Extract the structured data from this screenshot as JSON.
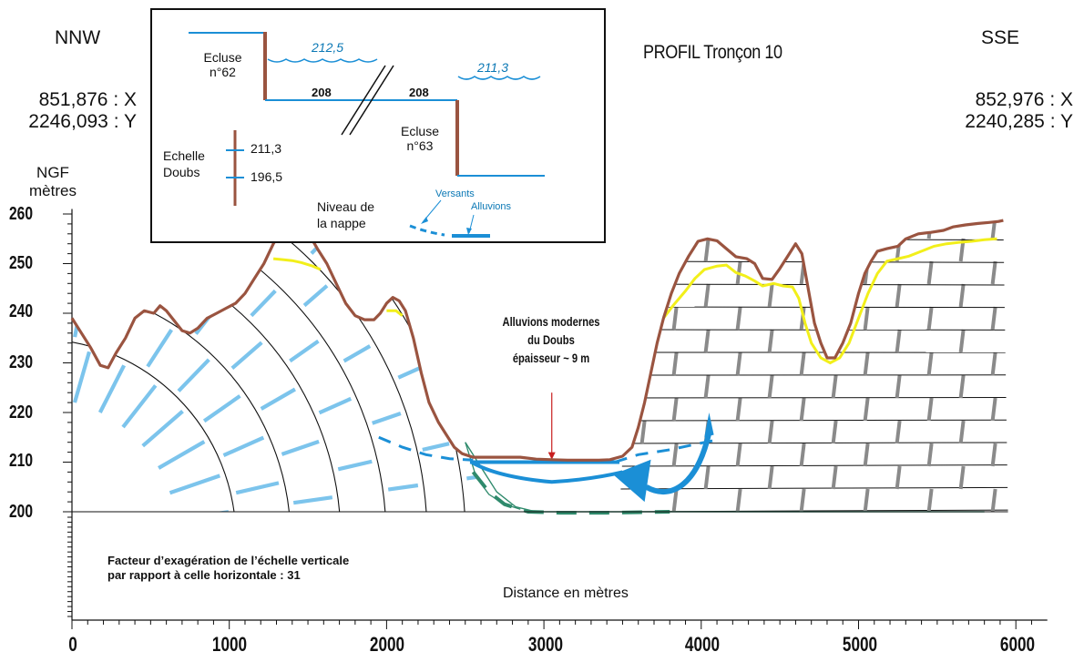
{
  "header": {
    "left_dir": "NNW",
    "right_dir": "SSE",
    "title": "PROFIL Tronçon 10",
    "left_x": "851,876 : X",
    "left_y": "2246,093 : Y",
    "right_x": "852,976 : X",
    "right_y": "2240,285 : Y"
  },
  "axis": {
    "unit_line1": "NGF",
    "unit_line2": "mètres",
    "y_ticks": [
      "260",
      "250",
      "240",
      "230",
      "220",
      "210",
      "200"
    ],
    "x_ticks": [
      "0",
      "1000",
      "2000",
      "3000",
      "4000",
      "5000",
      "6000"
    ],
    "x_label": "Distance en mètres"
  },
  "note": {
    "line1": "Facteur d’exagération de l’échelle verticale",
    "line2": "par rapport à celle horizontale : 31"
  },
  "annotation": {
    "line1": "Alluvions modernes",
    "line2": "du Doubs",
    "line3": "épaisseur ~ 9 m"
  },
  "inset": {
    "ecluse62_1": "Ecluse",
    "ecluse62_2": "n°62",
    "level_upstream": "212,5",
    "level_downstream": "211,3",
    "bottom_left": "208",
    "bottom_right": "208",
    "ecluse63_1": "Ecluse",
    "ecluse63_2": "n°63",
    "echelle_1": "Echelle",
    "echelle_2": "Doubs",
    "scale_high": "211,3",
    "scale_low": "196,5",
    "nappe_1": "Niveau de",
    "nappe_2": "la nappe",
    "versants": "Versants",
    "alluvions": "Alluvions"
  },
  "colors": {
    "terrain": "#9a5440",
    "yellow": "#f2ef1a",
    "blue": "#1b8fd6",
    "light_blue": "#7cc4ec",
    "green": "#2f8a6c",
    "brick_grey": "#8a8a8a",
    "marker_red": "#c81e1e"
  }
}
